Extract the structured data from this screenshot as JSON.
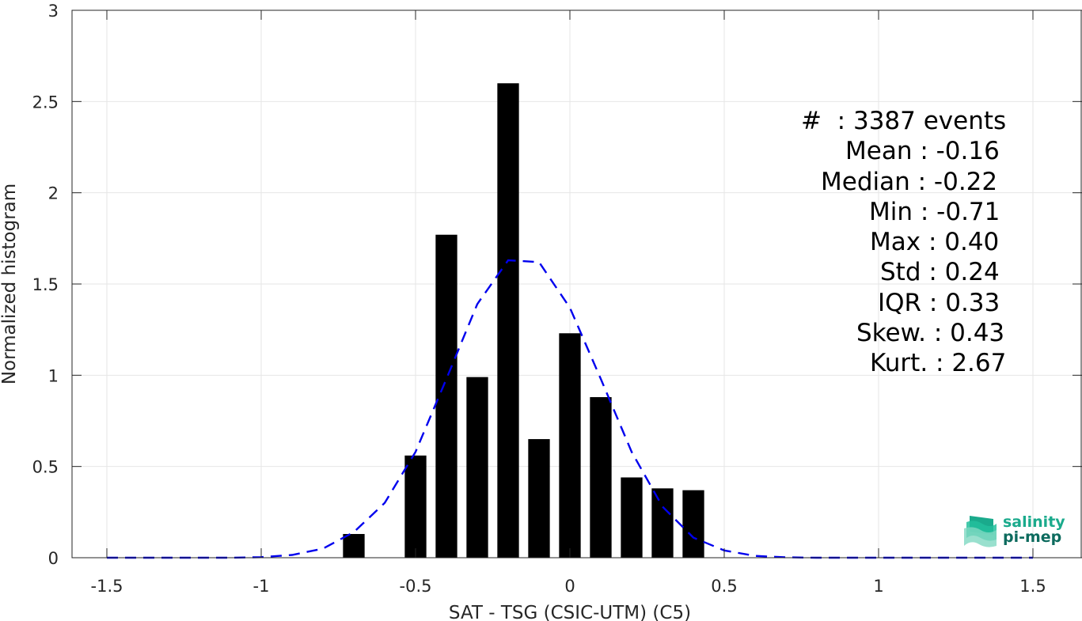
{
  "chart_data": {
    "type": "bar",
    "xlabel": "SAT - TSG (CSIC-UTM) (C5)",
    "ylabel": "Normalized histogram",
    "xlim": [
      -1.5,
      1.5
    ],
    "ylim": [
      0,
      3
    ],
    "grid": true,
    "xticks": [
      -1.5,
      -1,
      -0.5,
      0,
      0.5,
      1,
      1.5
    ],
    "xtick_labels": [
      "-1.5",
      "-1",
      "-0.5",
      "0",
      "0.5",
      "1",
      "1.5"
    ],
    "yticks": [
      0,
      0.5,
      1,
      1.5,
      2,
      2.5,
      3
    ],
    "ytick_labels": [
      "0",
      "0.5",
      "1",
      "1.5",
      "2",
      "2.5",
      "3"
    ],
    "bar_width": 0.07,
    "bars": [
      {
        "x": -0.7,
        "y": 0.13
      },
      {
        "x": -0.5,
        "y": 0.56
      },
      {
        "x": -0.4,
        "y": 1.77
      },
      {
        "x": -0.3,
        "y": 0.99
      },
      {
        "x": -0.2,
        "y": 2.6
      },
      {
        "x": -0.1,
        "y": 0.65
      },
      {
        "x": 0.0,
        "y": 1.23
      },
      {
        "x": 0.1,
        "y": 0.88
      },
      {
        "x": 0.2,
        "y": 0.44
      },
      {
        "x": 0.3,
        "y": 0.38
      },
      {
        "x": 0.4,
        "y": 0.37
      }
    ],
    "fit_curve": {
      "style": "dashed",
      "color": "#0000ee",
      "x": [
        -1.5,
        -1.4,
        -1.3,
        -1.2,
        -1.1,
        -1.0,
        -0.9,
        -0.8,
        -0.7,
        -0.6,
        -0.5,
        -0.4,
        -0.3,
        -0.2,
        -0.1,
        0.0,
        0.1,
        0.2,
        0.3,
        0.4,
        0.5,
        0.6,
        0.7,
        0.8,
        0.9,
        1.0,
        1.1,
        1.2,
        1.3,
        1.4,
        1.5
      ],
      "y": [
        0.0,
        0.0,
        0.0,
        0.0,
        0.0,
        0.003,
        0.015,
        0.05,
        0.14,
        0.3,
        0.58,
        0.98,
        1.39,
        1.63,
        1.62,
        1.37,
        0.98,
        0.58,
        0.28,
        0.11,
        0.04,
        0.01,
        0.002,
        0.0,
        0.0,
        0.0,
        0.0,
        0.0,
        0.0,
        0.0,
        0.0
      ]
    },
    "colors": {
      "bars": "#000000",
      "fit": "#0000ee",
      "grid": "#e6e6e6",
      "axis": "#262626"
    }
  },
  "stats": [
    "#  : 3387 events",
    "Mean : -0.16",
    "Median : -0.22",
    "Min : -0.71",
    "Max : 0.40",
    "Std : 0.24",
    "IQR : 0.33",
    "Skew. : 0.43",
    "Kurt. : 2.67"
  ],
  "logo": {
    "line1": "salinity",
    "line2": "pi-mep",
    "color1": "#1aaa8c",
    "color2": "#0d6b5e"
  }
}
